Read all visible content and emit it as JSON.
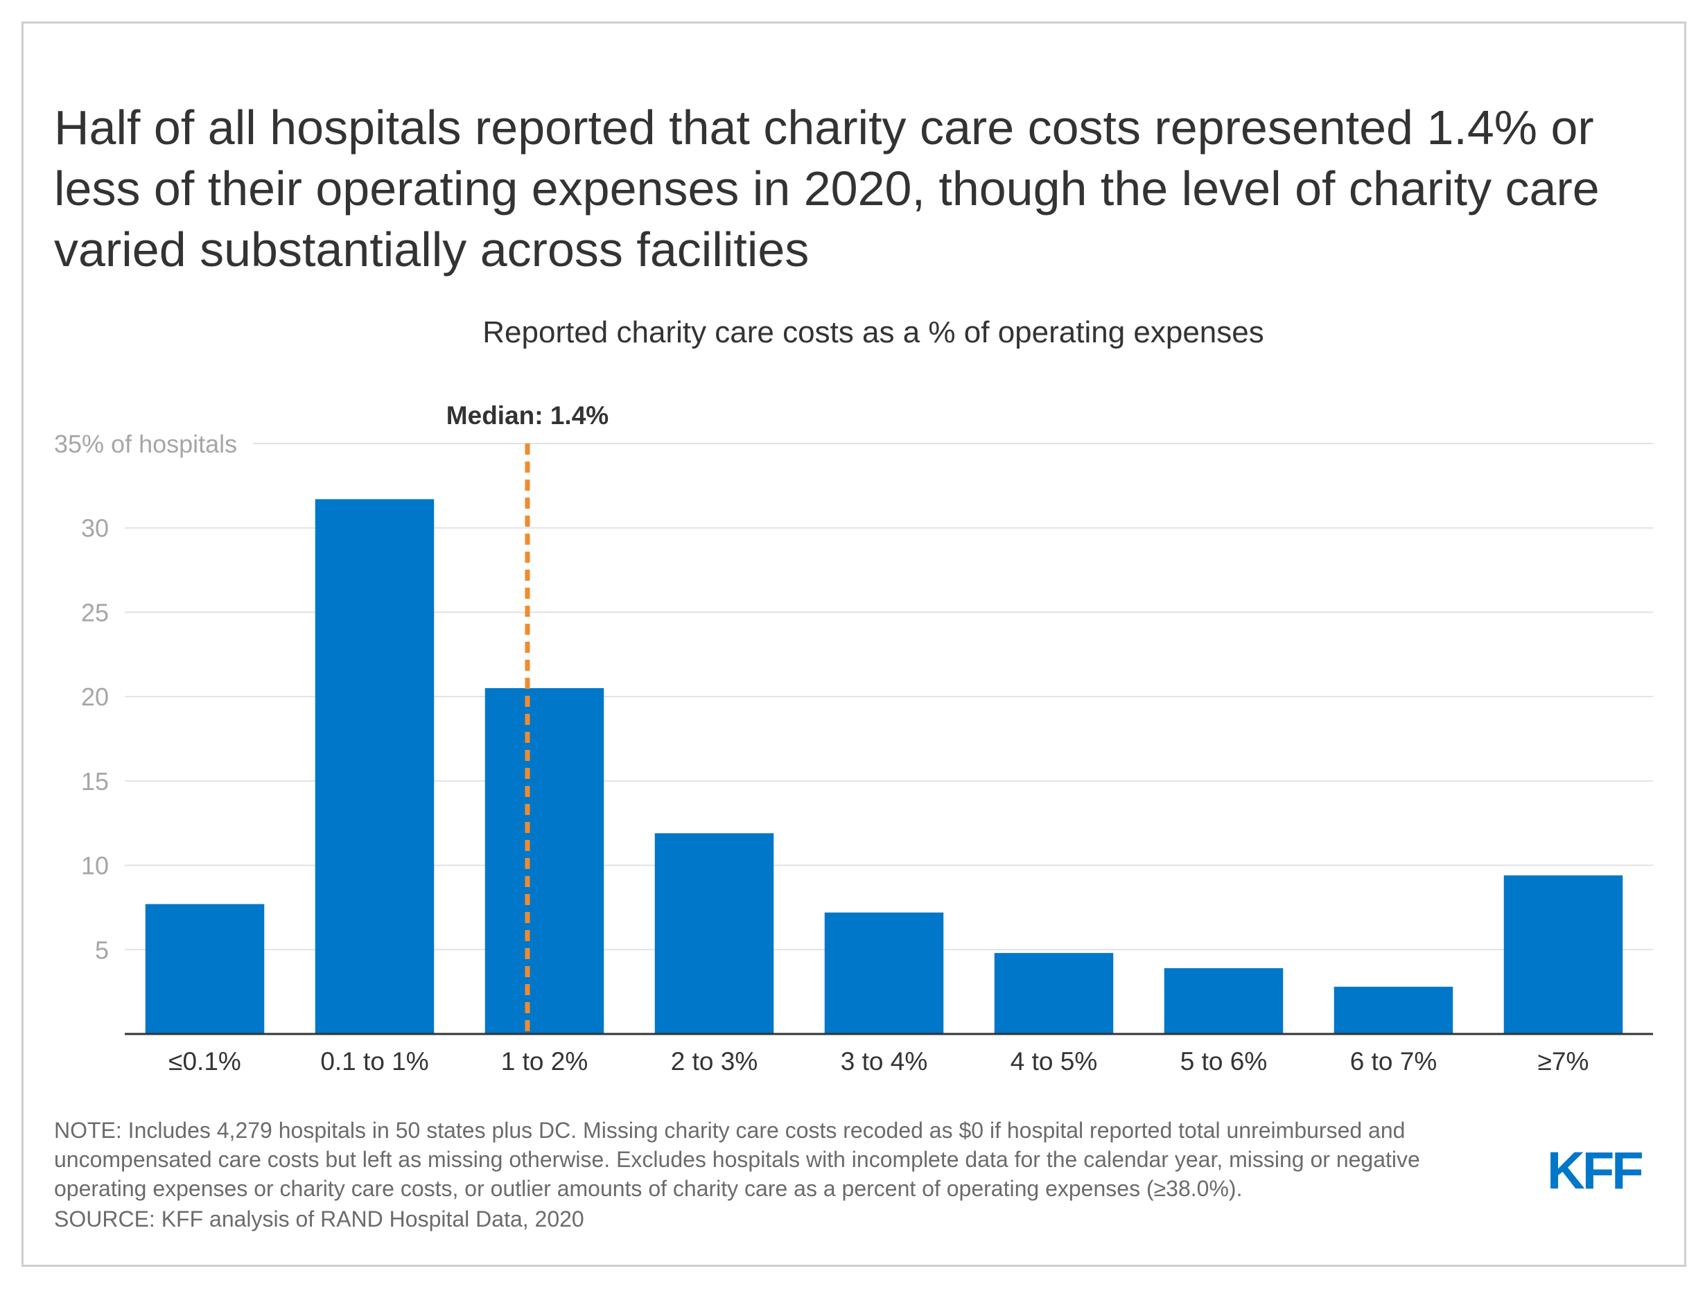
{
  "title": "Half of all hospitals reported that charity care costs represented 1.4% or less of their operating expenses in 2020, though the level of charity care varied substantially across facilities",
  "chart_data": {
    "type": "bar",
    "title": "Reported charity care costs as a % of operating expenses",
    "xlabel": "",
    "ylabel": "% of hospitals",
    "categories": [
      "≤0.1%",
      "0.1 to 1%",
      "1 to 2%",
      "2 to 3%",
      "3 to 4%",
      "4 to 5%",
      "5 to 6%",
      "6 to 7%",
      "≥7%"
    ],
    "values": [
      7.7,
      31.7,
      20.5,
      11.9,
      7.2,
      4.8,
      3.9,
      2.8,
      9.4
    ],
    "ylim": [
      0,
      35
    ],
    "yticks": [
      5,
      10,
      15,
      20,
      25,
      30,
      35
    ],
    "ytick_labels": [
      "5",
      "10",
      "15",
      "20",
      "25",
      "30",
      "35% of hospitals"
    ],
    "grid": true,
    "bar_color": "#0077c8",
    "annotations": [
      {
        "label": "Median: 1.4%",
        "x": 1.4,
        "category_position": 2.4,
        "color": "#f08b2f",
        "style": "dashed"
      }
    ]
  },
  "note": "NOTE: Includes 4,279 hospitals in 50 states plus DC. Missing charity care costs recoded as $0 if hospital reported total unreimbursed and uncompensated care costs but left as missing otherwise. Excludes hospitals with incomplete data for the calendar year, missing or negative operating expenses or charity care costs, or outlier amounts of charity care as a percent of operating expenses (≥38.0%).",
  "source": "SOURCE: KFF analysis of RAND Hospital Data, 2020",
  "logo_text": "KFF",
  "colors": {
    "accent": "#0077c8",
    "median": "#f08b2f",
    "text": "#333333",
    "muted": "#6b6b6b"
  }
}
